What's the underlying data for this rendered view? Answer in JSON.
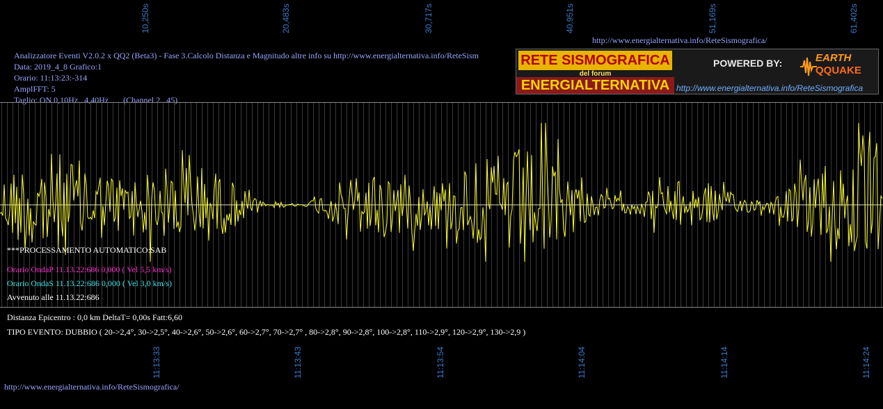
{
  "time_axis_top": [
    "10,250s",
    "20,483s",
    "30,717s",
    "40,951s",
    "51,169s",
    "61,402s"
  ],
  "time_axis_bottom": [
    "11:13:33",
    "11:13:43",
    "11:13:54",
    "11:14:04",
    "11:14:14",
    "11:14:24"
  ],
  "header_link": "http://www.energialternativa.info/ReteSismografica/",
  "info": {
    "line1": "Analizzatore Eventi V2.0.2 x QQ2 (Beta3) - Fase 3.Calcolo Distanza e Magnitudo altre info su http://www.energialternativa.info/ReteSism",
    "line2": "Data: 2019_4_8 Grafico:1",
    "line3": "Orario: 11:13:23:-314",
    "line4": "AmplFFT: 5",
    "line5": "Taglio: ON 0,10Hz...4,40Hz       (Channel 2...45)"
  },
  "logo": {
    "title_top": "RETE SISMOGRAFICA",
    "title_mid": "del forum",
    "title_bottom": "ENERGIALTERNATIVA",
    "powered_by": "POWERED BY:",
    "brand_top": "EARTH",
    "brand_bottom": "QQUAKE",
    "link": "http://www.energialternativa.info/ReteSismografica"
  },
  "analysis": {
    "processing": "***PROCESSAMENTO AUTOMATICO:SAB",
    "onda_p": "Orario OndaP 11.13.22:686  0,000 ( Vel 5,5 km/s)",
    "onda_s": "Orario OndaS 11.13.22:686  0,000 ( Vel 3,0 km/s)",
    "avvenuto": "Avvenuto alle 11.13.22:686",
    "distanza": "Distanza Epicentro : 0,0 km DeltaT= 0,00s  Fatt:6,60",
    "tipo_evento": "TIPO EVENTO: DUBBIO ( 20->2,4°, 30->2,5°, 40->2,6°, 50->2,6°, 60->2,7°, 70->2,7° , 80->2,8°, 90->2,8°, 100->2,8°, 110->2,9°, 120->2,9°, 130->2,9 )"
  },
  "footer_link": "http://www.energialternativa.info/ReteSismografica/",
  "colors": {
    "background": "#000000",
    "trace": "#ffff33",
    "axis_text": "#3b78c8",
    "info_text": "#9aa6ff",
    "onda_p": "#ff2fd2",
    "onda_s": "#3fe3e6"
  }
}
